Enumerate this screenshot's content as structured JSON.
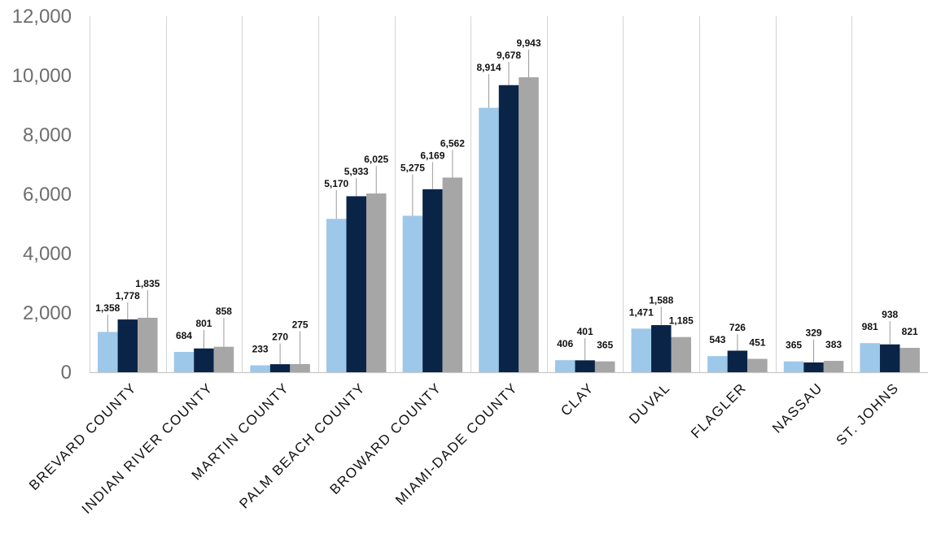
{
  "chart_data": {
    "type": "bar",
    "categories": [
      "BREVARD COUNTY",
      "INDIAN RIVER COUNTY",
      "MARTIN COUNTY",
      "PALM BEACH COUNTY",
      "BROWARD COUNTY",
      "MIAMI-DADE COUNTY",
      "CLAY",
      "DUVAL",
      "FLAGLER",
      "NASSAU",
      "ST. JOHNS"
    ],
    "series": [
      {
        "color": "#9DC8EA",
        "values": [
          1358,
          684,
          233,
          5170,
          5275,
          8914,
          406,
          1471,
          543,
          365,
          981
        ],
        "labels": [
          "1,358",
          "684",
          "233",
          "5,170",
          "5,275",
          "8,914",
          "406",
          "1,471",
          "543",
          "365",
          "981"
        ]
      },
      {
        "color": "#0A2447",
        "values": [
          1778,
          801,
          270,
          5933,
          6169,
          9678,
          401,
          1588,
          726,
          329,
          938
        ],
        "labels": [
          "1,778",
          "801",
          "270",
          "5,933",
          "6,169",
          "9,678",
          "401",
          "1,588",
          "726",
          "329",
          "938"
        ]
      },
      {
        "color": "#A6A6A6",
        "values": [
          1835,
          858,
          275,
          6025,
          6562,
          9943,
          365,
          1185,
          451,
          383,
          821
        ],
        "labels": [
          "1,835",
          "858",
          "275",
          "6,025",
          "6,562",
          "9,943",
          "365",
          "1,185",
          "451",
          "383",
          "821"
        ]
      }
    ],
    "ylim": [
      0,
      12000
    ],
    "yticks": [
      0,
      2000,
      4000,
      6000,
      8000,
      10000,
      12000
    ],
    "ytick_labels": [
      "0",
      "2,000",
      "4,000",
      "6,000",
      "8,000",
      "10,000",
      "12,000"
    ],
    "grid": "vertical category separators",
    "legend": "none"
  }
}
